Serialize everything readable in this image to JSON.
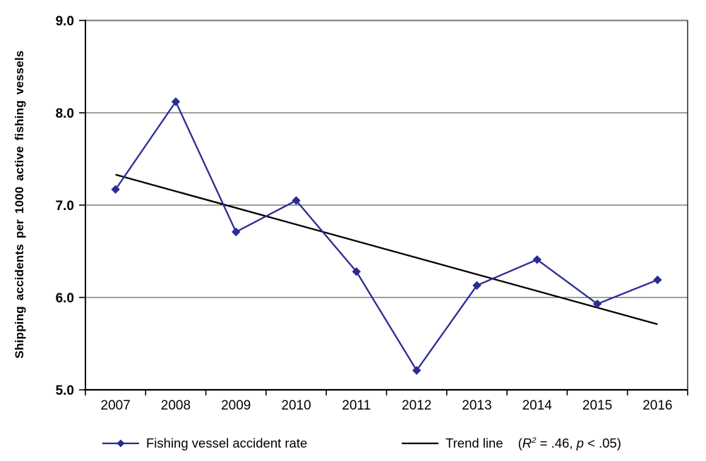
{
  "figure": {
    "background": "#ffffff",
    "colors": {
      "series": "#2b2b94",
      "trend": "#000000",
      "grid": "#3f3f3f",
      "frame_top": "#8e8e8e",
      "axis": "#000000",
      "text": "#000000"
    }
  },
  "chart_data": {
    "type": "line",
    "title": "",
    "xlabel": "",
    "ylabel": "Shipping accidents per 1000 active fishing vessels",
    "categories": [
      "2007",
      "2008",
      "2009",
      "2010",
      "2011",
      "2012",
      "2013",
      "2014",
      "2015",
      "2016"
    ],
    "series": [
      {
        "name": "Fishing vessel accident rate",
        "marker": "diamond",
        "color": "#2b2b94",
        "values": [
          7.17,
          8.12,
          6.71,
          7.05,
          6.28,
          5.21,
          6.13,
          6.41,
          5.93,
          6.19
        ]
      },
      {
        "name": "Trend line",
        "kind": "linear-trend",
        "color": "#000000",
        "start_value": 7.33,
        "end_value": 5.71,
        "r_squared": ".46",
        "p_value": "< .05"
      }
    ],
    "ylim": [
      5.0,
      9.0
    ],
    "y_tick_values": [
      5.0,
      6.0,
      7.0,
      8.0,
      9.0
    ],
    "y_tick_labels": [
      "5.0",
      "6.0",
      "7.0",
      "8.0",
      "9.0"
    ],
    "grid": true,
    "legend_position": "bottom"
  },
  "legend": {
    "series_label": "Fishing vessel accident rate",
    "trend_label": "Trend line",
    "trend_stats_parts": [
      "(",
      "R",
      "2",
      " = .46, ",
      "p",
      " < .05)"
    ]
  }
}
